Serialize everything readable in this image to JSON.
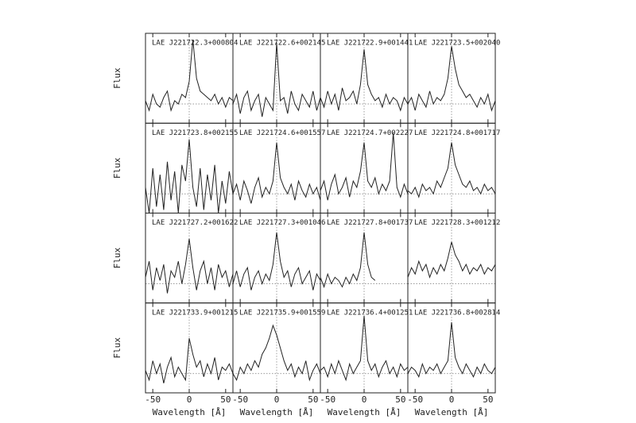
{
  "chart_data": [
    {
      "type": "line",
      "title": "LAE J221722.3+000804",
      "ylabel": "Flux",
      "x": [
        -60,
        -55,
        -50,
        -45,
        -40,
        -35,
        -30,
        -25,
        -20,
        -15,
        -10,
        -5,
        0,
        5,
        10,
        15,
        20,
        25,
        30,
        35,
        40,
        45,
        50,
        55,
        60
      ],
      "values": [
        0.05,
        -0.1,
        0.15,
        0.0,
        -0.05,
        0.1,
        0.2,
        -0.1,
        0.05,
        0.0,
        0.15,
        0.1,
        0.35,
        1.0,
        0.4,
        0.2,
        0.15,
        0.1,
        0.05,
        0.15,
        0.0,
        0.1,
        -0.05,
        0.1,
        0.05
      ],
      "xlim": [
        -60,
        60
      ],
      "ylim": [
        -0.3,
        1.1
      ],
      "xticks": [
        -50,
        0,
        50
      ],
      "color": "#222222"
    },
    {
      "type": "line",
      "title": "LAE J221722.6+002145",
      "x": [
        -60,
        -55,
        -50,
        -45,
        -40,
        -35,
        -30,
        -25,
        -20,
        -15,
        -10,
        -5,
        0,
        5,
        10,
        15,
        20,
        25,
        30,
        35,
        40,
        45,
        50,
        55,
        60
      ],
      "values": [
        0.0,
        0.15,
        -0.15,
        0.1,
        0.2,
        -0.1,
        0.05,
        0.15,
        -0.2,
        0.1,
        0.0,
        -0.1,
        0.95,
        0.05,
        0.1,
        -0.15,
        0.2,
        0.0,
        -0.1,
        0.15,
        0.05,
        -0.05,
        0.2,
        -0.1,
        0.1
      ],
      "xlim": [
        -60,
        60
      ],
      "ylim": [
        -0.3,
        1.1
      ],
      "xticks": [
        -50,
        0,
        50
      ],
      "color": "#222222"
    },
    {
      "type": "line",
      "title": "LAE J221722.9+001441",
      "x": [
        -60,
        -55,
        -50,
        -45,
        -40,
        -35,
        -30,
        -25,
        -20,
        -15,
        -10,
        -5,
        0,
        5,
        10,
        15,
        20,
        25,
        30,
        35,
        40,
        45,
        50,
        55,
        60
      ],
      "values": [
        0.1,
        -0.05,
        0.2,
        0.0,
        0.15,
        -0.1,
        0.25,
        0.05,
        0.1,
        0.2,
        0.0,
        0.3,
        0.85,
        0.3,
        0.15,
        0.05,
        0.1,
        -0.05,
        0.15,
        0.0,
        0.1,
        0.05,
        -0.1,
        0.1,
        0.0
      ],
      "xlim": [
        -60,
        60
      ],
      "ylim": [
        -0.3,
        1.1
      ],
      "xticks": [
        -50,
        0,
        50
      ],
      "color": "#222222"
    },
    {
      "type": "line",
      "title": "LAE J221723.5+002040",
      "x": [
        -60,
        -55,
        -50,
        -45,
        -40,
        -35,
        -30,
        -25,
        -20,
        -15,
        -10,
        -5,
        0,
        5,
        10,
        15,
        20,
        25,
        30,
        35,
        40,
        45,
        50,
        55,
        60
      ],
      "values": [
        0.0,
        0.1,
        -0.1,
        0.15,
        0.05,
        -0.05,
        0.2,
        0.0,
        0.1,
        0.05,
        0.15,
        0.4,
        0.9,
        0.55,
        0.3,
        0.2,
        0.1,
        0.15,
        0.05,
        -0.05,
        0.1,
        0.0,
        0.15,
        -0.1,
        0.05
      ],
      "xlim": [
        -60,
        60
      ],
      "ylim": [
        -0.3,
        1.1
      ],
      "xticks": [
        -50,
        0,
        50
      ],
      "color": "#222222"
    },
    {
      "type": "line",
      "title": "LAE J221723.8+002155",
      "ylabel": "Flux",
      "x": [
        -60,
        -55,
        -50,
        -45,
        -40,
        -35,
        -30,
        -25,
        -20,
        -15,
        -10,
        -5,
        0,
        5,
        10,
        15,
        20,
        25,
        30,
        35,
        40,
        45,
        50,
        55,
        60
      ],
      "values": [
        0.1,
        -0.3,
        0.4,
        -0.2,
        0.3,
        -0.25,
        0.5,
        -0.1,
        0.35,
        -0.3,
        0.45,
        0.2,
        0.85,
        0.1,
        -0.2,
        0.4,
        -0.25,
        0.3,
        -0.1,
        0.45,
        -0.3,
        0.2,
        -0.15,
        0.35,
        0.0
      ],
      "xlim": [
        -60,
        60
      ],
      "ylim": [
        -0.3,
        1.1
      ],
      "xticks": [
        -50,
        0,
        50
      ],
      "color": "#222222"
    },
    {
      "type": "line",
      "title": "LAE J221724.6+001557",
      "x": [
        -60,
        -55,
        -50,
        -45,
        -40,
        -35,
        -30,
        -25,
        -20,
        -15,
        -10,
        -5,
        0,
        5,
        10,
        15,
        20,
        25,
        30,
        35,
        40,
        45,
        50,
        55,
        60
      ],
      "values": [
        0.0,
        0.15,
        -0.1,
        0.2,
        0.05,
        -0.15,
        0.1,
        0.25,
        -0.05,
        0.1,
        0.0,
        0.2,
        0.8,
        0.25,
        0.1,
        0.0,
        0.15,
        -0.1,
        0.2,
        0.05,
        -0.05,
        0.15,
        0.0,
        0.1,
        -0.1
      ],
      "xlim": [
        -60,
        60
      ],
      "ylim": [
        -0.3,
        1.1
      ],
      "xticks": [
        -50,
        0,
        50
      ],
      "color": "#222222"
    },
    {
      "type": "line",
      "title": "LAE J221724.7+002227",
      "x": [
        -60,
        -55,
        -50,
        -45,
        -40,
        -35,
        -30,
        -25,
        -20,
        -15,
        -10,
        -5,
        0,
        5,
        10,
        15,
        20,
        25,
        30,
        35,
        40,
        45,
        50,
        55,
        60
      ],
      "values": [
        0.05,
        0.2,
        -0.1,
        0.15,
        0.3,
        0.0,
        0.1,
        0.25,
        -0.05,
        0.2,
        0.1,
        0.35,
        0.8,
        0.2,
        0.1,
        0.25,
        0.0,
        0.15,
        0.05,
        0.2,
        0.95,
        0.1,
        -0.05,
        0.15,
        0.0
      ],
      "xlim": [
        -60,
        60
      ],
      "ylim": [
        -0.3,
        1.1
      ],
      "xticks": [
        -50,
        0,
        50
      ],
      "color": "#222222"
    },
    {
      "type": "line",
      "title": "LAE J221724.8+001717",
      "x": [
        -60,
        -55,
        -50,
        -45,
        -40,
        -35,
        -30,
        -25,
        -20,
        -15,
        -10,
        -5,
        0,
        5,
        10,
        15,
        20,
        25,
        30,
        35,
        40,
        45,
        50,
        55,
        60
      ],
      "values": [
        0.05,
        0.0,
        0.1,
        -0.05,
        0.15,
        0.05,
        0.1,
        0.0,
        0.2,
        0.1,
        0.25,
        0.4,
        0.8,
        0.45,
        0.3,
        0.15,
        0.1,
        0.2,
        0.05,
        0.1,
        0.0,
        0.15,
        0.05,
        0.1,
        0.0
      ],
      "xlim": [
        -60,
        60
      ],
      "ylim": [
        -0.3,
        1.1
      ],
      "xticks": [
        -50,
        0,
        50
      ],
      "color": "#222222"
    },
    {
      "type": "line",
      "title": "LAE J221727.2+001622",
      "ylabel": "Flux",
      "x": [
        -60,
        -55,
        -50,
        -45,
        -40,
        -35,
        -30,
        -25,
        -20,
        -15,
        -10,
        -5,
        0,
        5,
        10,
        15,
        20,
        25,
        30,
        35,
        40,
        45,
        50,
        55,
        60
      ],
      "values": [
        0.1,
        0.35,
        -0.1,
        0.25,
        0.05,
        0.3,
        -0.15,
        0.2,
        0.1,
        0.35,
        0.0,
        0.3,
        0.7,
        0.25,
        -0.1,
        0.2,
        0.35,
        0.0,
        0.25,
        -0.1,
        0.3,
        0.1,
        0.2,
        -0.05,
        0.15
      ],
      "xlim": [
        -60,
        60
      ],
      "ylim": [
        -0.3,
        1.1
      ],
      "xticks": [
        -50,
        0,
        50
      ],
      "color": "#222222"
    },
    {
      "type": "line",
      "title": "LAE J221727.3+001046",
      "x": [
        -60,
        -55,
        -50,
        -45,
        -40,
        -35,
        -30,
        -25,
        -20,
        -15,
        -10,
        -5,
        0,
        5,
        10,
        15,
        20,
        25,
        30,
        35,
        40,
        45,
        50,
        55,
        60
      ],
      "values": [
        0.0,
        0.2,
        -0.05,
        0.15,
        0.25,
        -0.1,
        0.1,
        0.2,
        0.0,
        0.15,
        0.05,
        0.3,
        0.8,
        0.35,
        0.1,
        0.2,
        -0.05,
        0.15,
        0.25,
        0.0,
        0.1,
        0.2,
        -0.1,
        0.15,
        0.05
      ],
      "xlim": [
        -60,
        60
      ],
      "ylim": [
        -0.3,
        1.1
      ],
      "xticks": [
        -50,
        0,
        50
      ],
      "color": "#222222"
    },
    {
      "type": "line",
      "title": "LAE J221727.8+001737",
      "x": [
        -60,
        -55,
        -50,
        -45,
        -40,
        -35,
        -30,
        -25,
        -20,
        -15,
        -10,
        -5,
        0,
        5,
        10,
        15,
        20,
        25,
        30,
        35,
        40,
        45,
        50,
        55,
        60
      ],
      "values": [
        0.1,
        -0.05,
        0.15,
        0.0,
        0.1,
        0.05,
        -0.05,
        0.1,
        0.0,
        0.15,
        0.05,
        0.25,
        0.8,
        0.3,
        0.1,
        0.05,
        null,
        null,
        null,
        null,
        null,
        null,
        null,
        null,
        null
      ],
      "xlim": [
        -60,
        60
      ],
      "ylim": [
        -0.3,
        1.1
      ],
      "xticks": [
        -50,
        0,
        50
      ],
      "color": "#222222"
    },
    {
      "type": "line",
      "title": "LAE J221728.3+001212",
      "x": [
        -60,
        -55,
        -50,
        -45,
        -40,
        -35,
        -30,
        -25,
        -20,
        -15,
        -10,
        -5,
        0,
        5,
        10,
        15,
        20,
        25,
        30,
        35,
        40,
        45,
        50,
        55,
        60
      ],
      "values": [
        0.1,
        0.25,
        0.15,
        0.35,
        0.2,
        0.3,
        0.1,
        0.25,
        0.15,
        0.3,
        0.2,
        0.4,
        0.65,
        0.45,
        0.35,
        0.2,
        0.3,
        0.15,
        0.25,
        0.2,
        0.3,
        0.15,
        0.25,
        0.2,
        0.3
      ],
      "xlim": [
        -60,
        60
      ],
      "ylim": [
        -0.3,
        1.1
      ],
      "xticks": [
        -50,
        0,
        50
      ],
      "color": "#222222"
    },
    {
      "type": "line",
      "title": "LAE J221733.9+001215",
      "ylabel": "Flux",
      "xlabel": "Wavelength [Å]",
      "x": [
        -60,
        -55,
        -50,
        -45,
        -40,
        -35,
        -30,
        -25,
        -20,
        -15,
        -10,
        -5,
        0,
        5,
        10,
        15,
        20,
        25,
        30,
        35,
        40,
        45,
        50,
        55,
        60
      ],
      "values": [
        0.05,
        -0.1,
        0.2,
        0.0,
        0.15,
        -0.15,
        0.1,
        0.25,
        -0.05,
        0.1,
        0.0,
        -0.1,
        0.55,
        0.3,
        0.1,
        0.2,
        -0.05,
        0.15,
        0.0,
        0.25,
        -0.1,
        0.1,
        0.05,
        0.15,
        0.0
      ],
      "xlim": [
        -60,
        60
      ],
      "ylim": [
        -0.3,
        1.1
      ],
      "xticks": [
        -50,
        0,
        50
      ],
      "color": "#222222"
    },
    {
      "type": "line",
      "title": "LAE J221735.9+001559",
      "xlabel": "Wavelength [Å]",
      "x": [
        -60,
        -55,
        -50,
        -45,
        -40,
        -35,
        -30,
        -25,
        -20,
        -15,
        -10,
        -5,
        0,
        5,
        10,
        15,
        20,
        25,
        30,
        35,
        40,
        45,
        50,
        55,
        60
      ],
      "values": [
        0.0,
        -0.1,
        0.1,
        0.0,
        0.15,
        0.05,
        0.2,
        0.1,
        0.3,
        0.4,
        0.55,
        0.75,
        0.6,
        0.4,
        0.2,
        0.05,
        0.15,
        -0.05,
        0.1,
        0.0,
        0.2,
        -0.1,
        0.05,
        0.15,
        0.0
      ],
      "xlim": [
        -60,
        60
      ],
      "ylim": [
        -0.3,
        1.1
      ],
      "xticks": [
        -50,
        0,
        50
      ],
      "color": "#222222"
    },
    {
      "type": "line",
      "title": "LAE J221736.4+001251",
      "xlabel": "Wavelength [Å]",
      "x": [
        -60,
        -55,
        -50,
        -45,
        -40,
        -35,
        -30,
        -25,
        -20,
        -15,
        -10,
        -5,
        0,
        5,
        10,
        15,
        20,
        25,
        30,
        35,
        40,
        45,
        50,
        55,
        60
      ],
      "values": [
        0.05,
        0.1,
        -0.05,
        0.15,
        0.0,
        0.2,
        0.05,
        -0.1,
        0.15,
        0.0,
        0.1,
        0.2,
        0.9,
        0.2,
        0.05,
        0.15,
        -0.05,
        0.1,
        0.2,
        0.0,
        0.1,
        -0.05,
        0.15,
        0.05,
        0.1
      ],
      "xlim": [
        -60,
        60
      ],
      "ylim": [
        -0.3,
        1.1
      ],
      "xticks": [
        -50,
        0,
        50
      ],
      "color": "#222222"
    },
    {
      "type": "line",
      "title": "LAE J221736.8+002814",
      "xlabel": "Wavelength [Å]",
      "x": [
        -60,
        -55,
        -50,
        -45,
        -40,
        -35,
        -30,
        -25,
        -20,
        -15,
        -10,
        -5,
        0,
        5,
        10,
        15,
        20,
        25,
        30,
        35,
        40,
        45,
        50,
        55,
        60
      ],
      "values": [
        0.0,
        0.1,
        0.05,
        -0.05,
        0.15,
        0.0,
        0.1,
        0.05,
        0.15,
        0.0,
        0.1,
        0.2,
        0.8,
        0.25,
        0.1,
        0.0,
        0.15,
        0.05,
        -0.05,
        0.1,
        0.0,
        0.15,
        0.05,
        0.0,
        0.1
      ],
      "xlim": [
        -60,
        60
      ],
      "ylim": [
        -0.3,
        1.1
      ],
      "xticks": [
        -50,
        0,
        50
      ],
      "color": "#222222"
    }
  ]
}
